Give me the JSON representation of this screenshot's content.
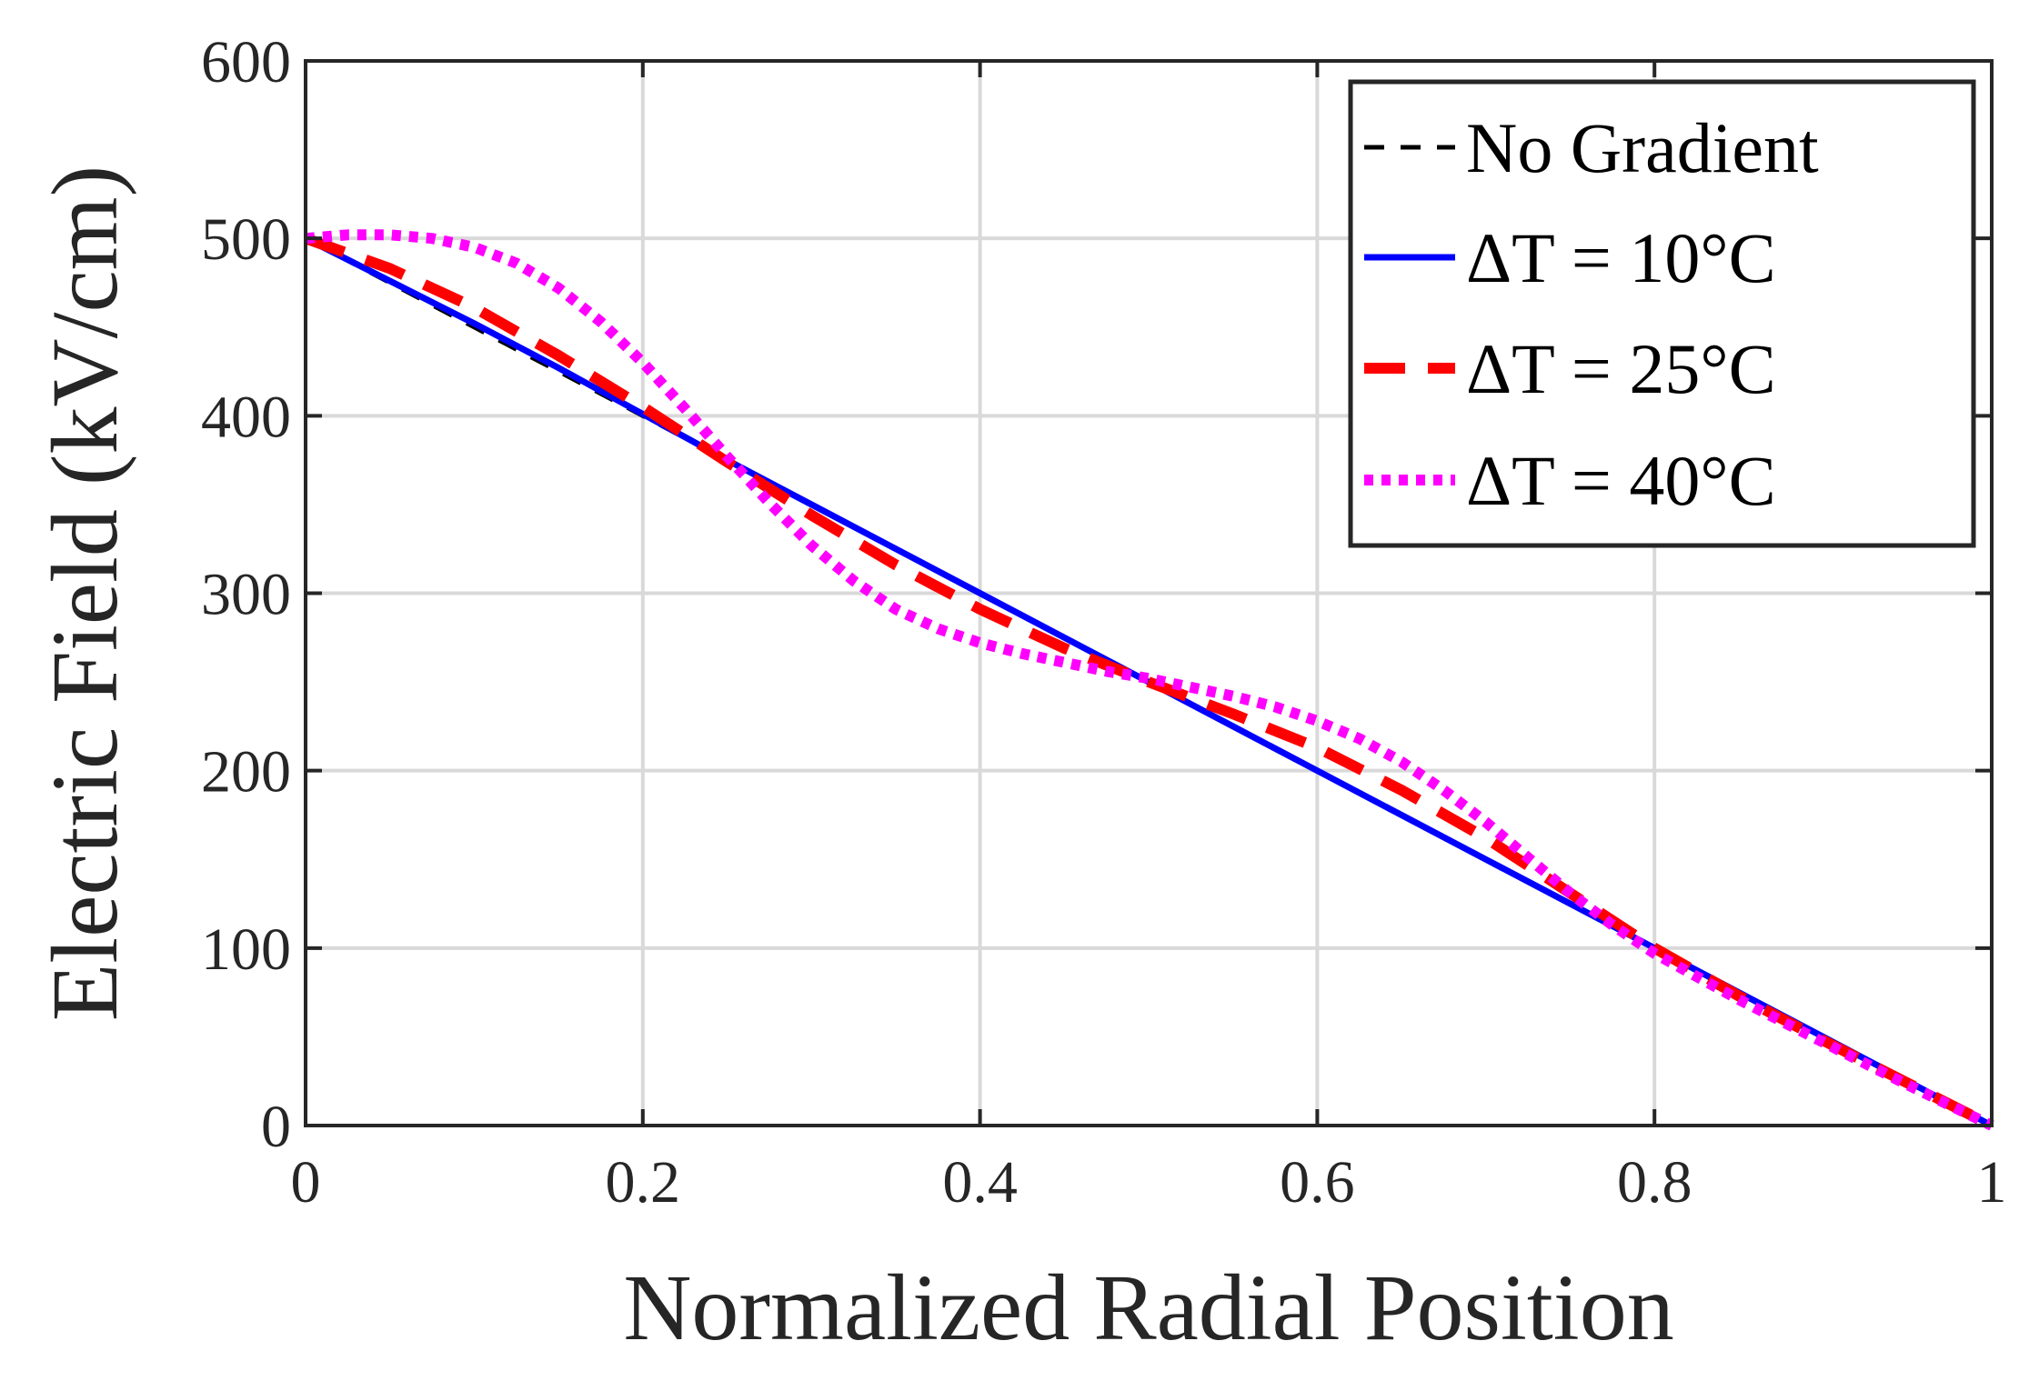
{
  "chart_data": {
    "type": "line",
    "title": "",
    "xlabel": "Normalized Radial Position",
    "ylabel": "Electric Field (kV/cm)",
    "xlim": [
      0,
      1
    ],
    "ylim": [
      0,
      600
    ],
    "xticks": [
      0,
      0.2,
      0.4,
      0.6,
      0.8,
      1
    ],
    "xtick_labels": [
      "0",
      "0.2",
      "0.4",
      "0.6",
      "0.8",
      "1"
    ],
    "yticks": [
      0,
      100,
      200,
      300,
      400,
      500,
      600
    ],
    "ytick_labels": [
      "0",
      "100",
      "200",
      "300",
      "400",
      "500",
      "600"
    ],
    "grid": true,
    "legend_position": "top-right",
    "series": [
      {
        "name": "No Gradient",
        "color": "#000000",
        "style": "dashed",
        "x": [
          0,
          0.1,
          0.2,
          0.3,
          0.4,
          0.5,
          0.6,
          0.7,
          0.8,
          0.9,
          1.0
        ],
        "y": [
          500,
          450,
          400,
          350,
          300,
          250,
          200,
          150,
          100,
          50,
          0
        ]
      },
      {
        "name": "ΔT = 10°C",
        "color": "#0000ff",
        "style": "solid",
        "x": [
          0,
          0.05,
          0.1,
          0.15,
          0.2,
          0.25,
          0.3,
          0.35,
          0.4,
          0.45,
          0.5,
          0.55,
          0.6,
          0.65,
          0.7,
          0.75,
          0.8,
          0.85,
          0.9,
          0.95,
          1.0
        ],
        "y": [
          500,
          476,
          452,
          427,
          401,
          375,
          350,
          325,
          300,
          275,
          250,
          225,
          200,
          175,
          150,
          125,
          100,
          75,
          50,
          25,
          0
        ]
      },
      {
        "name": "ΔT = 25°C",
        "color": "#ff0000",
        "style": "dashed",
        "x": [
          0,
          0.05,
          0.1,
          0.15,
          0.2,
          0.25,
          0.3,
          0.35,
          0.4,
          0.45,
          0.5,
          0.55,
          0.6,
          0.65,
          0.7,
          0.75,
          0.8,
          0.85,
          0.9,
          0.95,
          1.0
        ],
        "y": [
          500,
          483,
          461,
          434,
          405,
          374,
          344,
          316,
          291,
          269,
          250,
          232,
          213,
          189,
          162,
          131,
          100,
          73,
          48,
          24,
          0
        ]
      },
      {
        "name": "ΔT = 40°C",
        "color": "#ff00ff",
        "style": "dotted",
        "x": [
          0,
          0.025,
          0.05,
          0.075,
          0.1,
          0.125,
          0.15,
          0.175,
          0.2,
          0.225,
          0.25,
          0.275,
          0.3,
          0.325,
          0.35,
          0.375,
          0.4,
          0.425,
          0.45,
          0.475,
          0.5,
          0.525,
          0.55,
          0.575,
          0.6,
          0.625,
          0.65,
          0.675,
          0.7,
          0.725,
          0.75,
          0.775,
          0.8,
          0.85,
          0.9,
          0.95,
          1.0
        ],
        "y": [
          500,
          502,
          502,
          500,
          495,
          486,
          472,
          453,
          430,
          404,
          377,
          351,
          327,
          307,
          291,
          280,
          272,
          266,
          261,
          256,
          252,
          247,
          242,
          236,
          228,
          218,
          205,
          189,
          171,
          151,
          131,
          113,
          97,
          71,
          47,
          23,
          0
        ]
      }
    ]
  }
}
